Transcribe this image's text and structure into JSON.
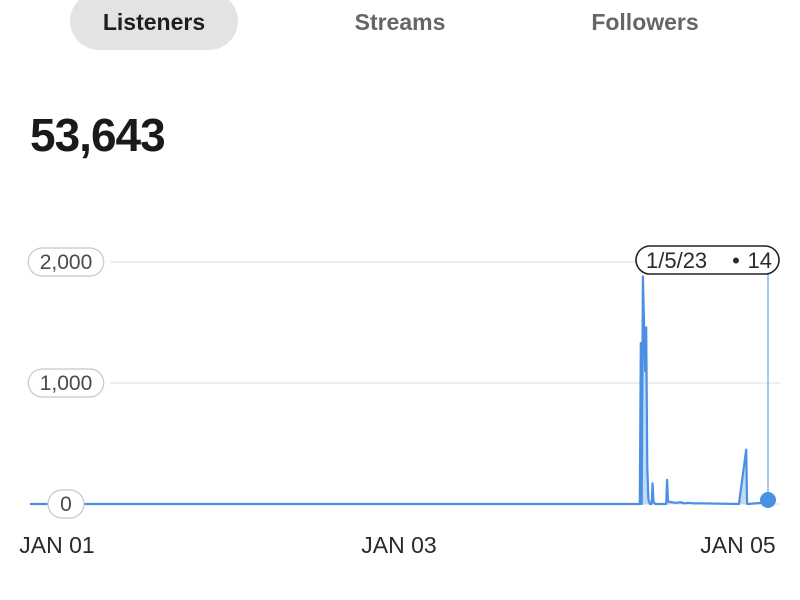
{
  "tabs": [
    {
      "label": "Listeners",
      "active": true
    },
    {
      "label": "Streams",
      "active": false
    },
    {
      "label": "Followers",
      "active": false
    }
  ],
  "total_value": "53,643",
  "tooltip": {
    "date": "1/5/23",
    "value": "14",
    "separator": "•"
  },
  "colors": {
    "line": "#4a90e2",
    "fill": "#b7d3f2",
    "grid": "#dddddd",
    "active_tab_bg": "#e3e3e3"
  },
  "chart_data": {
    "type": "area",
    "title": "",
    "xlabel": "",
    "ylabel": "",
    "ylim": [
      0,
      2000
    ],
    "y_ticks": [
      {
        "value": 0,
        "label": "0"
      },
      {
        "value": 1000,
        "label": "1,000"
      },
      {
        "value": 2000,
        "label": "2,000"
      }
    ],
    "x_ticks": [
      {
        "value": 1.0,
        "label": "JAN 01"
      },
      {
        "value": 3.0,
        "label": "JAN 03"
      },
      {
        "value": 5.0,
        "label": "JAN 05"
      }
    ],
    "xlim": [
      1.0,
      5.06
    ],
    "grid": true,
    "series": [
      {
        "x": [
          1.0,
          4.34,
          4.355,
          4.36,
          4.365,
          4.372,
          4.378,
          4.384,
          4.39,
          4.396,
          4.402,
          4.41,
          4.42,
          4.425,
          4.43,
          4.44,
          4.48,
          4.5,
          4.505,
          4.51,
          4.55,
          4.58,
          4.6,
          4.62,
          4.65,
          4.7,
          4.9,
          4.94,
          4.945,
          4.95,
          5.06
        ],
        "y": [
          0,
          0,
          0,
          1330,
          0,
          1880,
          1500,
          1100,
          1460,
          300,
          40,
          0,
          0,
          170,
          20,
          0,
          0,
          0,
          200,
          20,
          10,
          15,
          5,
          10,
          5,
          5,
          0,
          450,
          0,
          0,
          14
        ]
      }
    ],
    "highlight": {
      "x": 5.06,
      "y": 14
    }
  }
}
